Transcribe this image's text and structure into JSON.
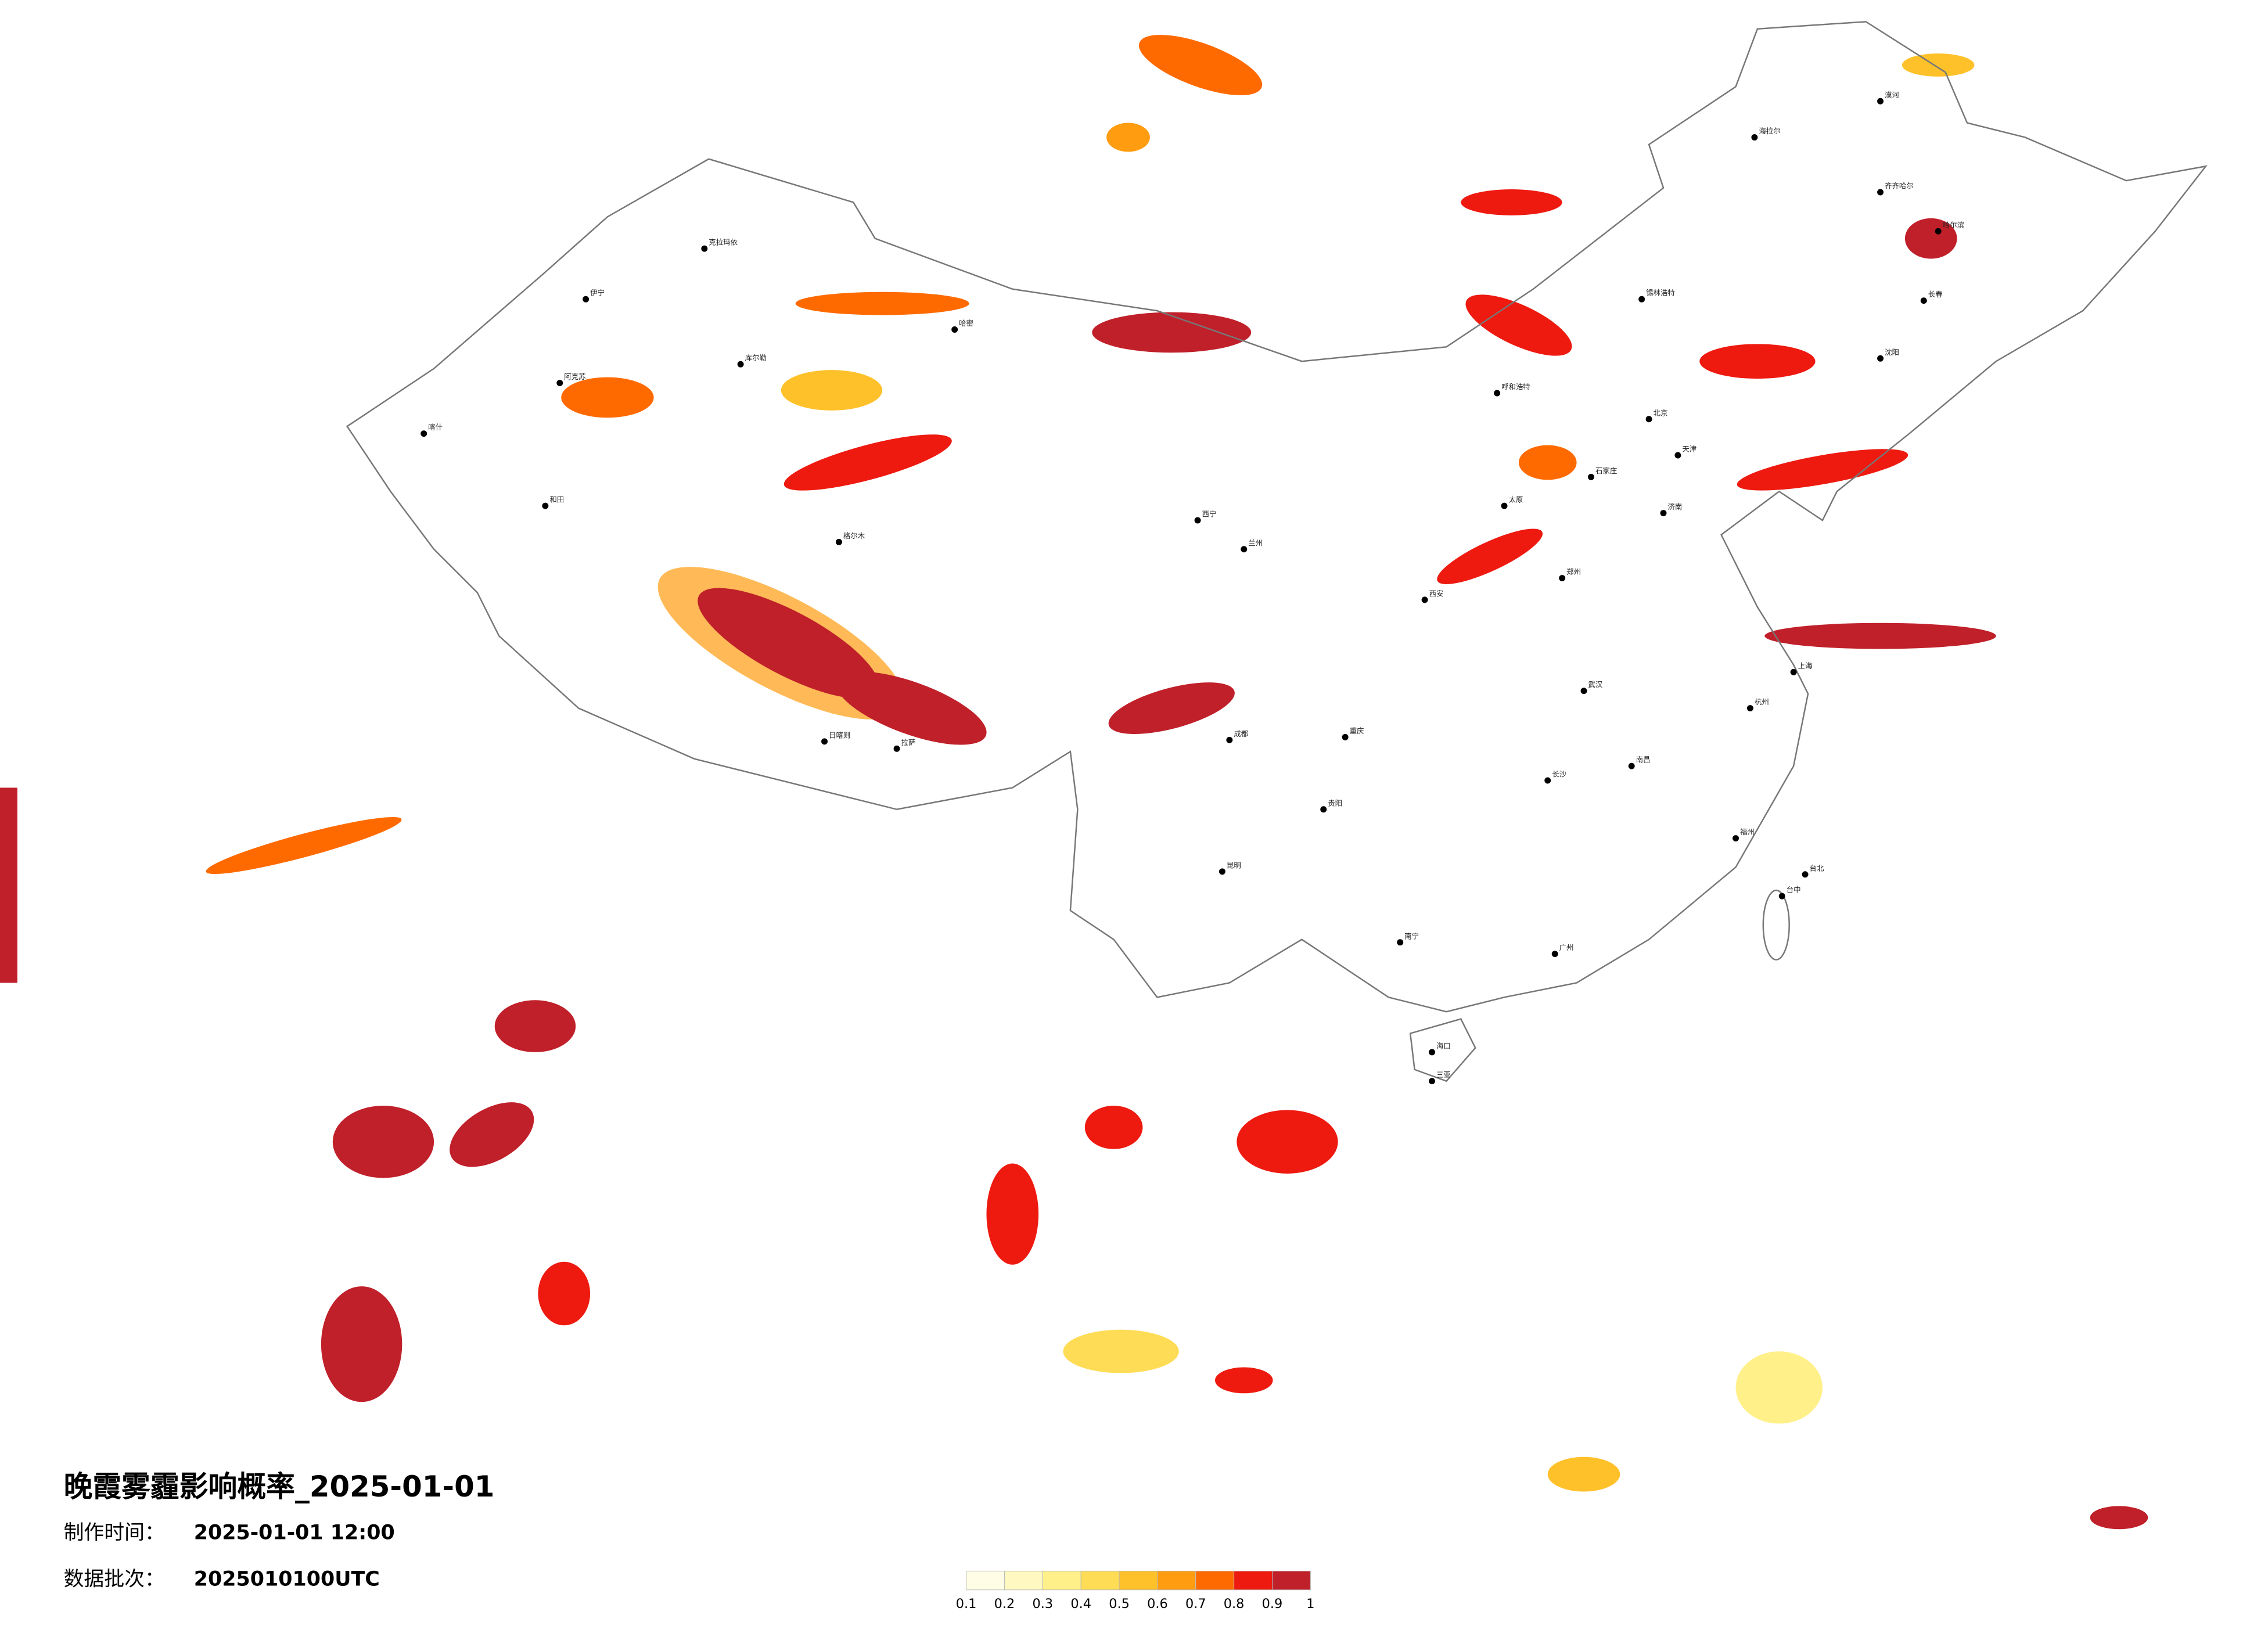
{
  "title": "晚霞雾霾影响概率_2025-01-01",
  "made_label": "制作时间：",
  "made_time": "2025-01-01 12:00",
  "batch_label": "数据批次：",
  "batch": "2025010100UTC",
  "legend": {
    "ticks": [
      0.1,
      0.2,
      0.3,
      0.4,
      0.5,
      0.6,
      0.7,
      0.8,
      0.9,
      1
    ],
    "colors": [
      "#fffde6",
      "#fff8c0",
      "#fff08a",
      "#ffdc55",
      "#ffc12a",
      "#ff9c10",
      "#ff6a00",
      "#ee1a10",
      "#c0202a"
    ]
  },
  "cities": [
    "漠河",
    "海拉尔",
    "齐齐哈尔",
    "哈尔滨",
    "长春",
    "沈阳",
    "呼和浩特",
    "锡林浩特",
    "北京",
    "天津",
    "石家庄",
    "太原",
    "济南",
    "郑州",
    "西安",
    "兰州",
    "西宁",
    "克拉玛依",
    "伊宁",
    "阿克苏",
    "喀什",
    "和田",
    "哈密",
    "库尔勒",
    "格尔木",
    "拉萨",
    "日喀则",
    "成都",
    "重庆",
    "贵阳",
    "昆明",
    "南宁",
    "海口",
    "三亚",
    "长沙",
    "南昌",
    "武汉",
    "杭州",
    "上海",
    "福州",
    "台北",
    "台中",
    "广州"
  ]
}
